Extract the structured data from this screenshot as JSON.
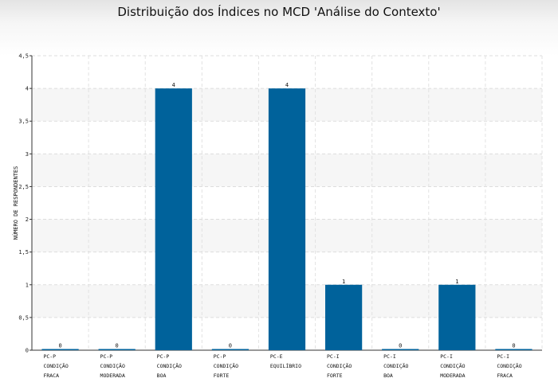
{
  "chart_data": {
    "type": "bar",
    "title": "Distribuição dos Índices no MCD 'Análise do Contexto'",
    "xlabel": "",
    "ylabel": "NÚMERO DE RESPONDENTES",
    "ylim": [
      0,
      4.5
    ],
    "yticks": [
      "0",
      "0,5",
      "1",
      "1,5",
      "2",
      "2,5",
      "3",
      "3,5",
      "4",
      "4,5"
    ],
    "ytick_values": [
      0,
      0.5,
      1,
      1.5,
      2,
      2.5,
      3,
      3.5,
      4,
      4.5
    ],
    "grid": true,
    "legend": "none",
    "bar_color": "#00629b",
    "categories": [
      [
        "PC-P",
        "CONDIÇÃO",
        "FRACA"
      ],
      [
        "PC-P",
        "CONDIÇÃO",
        "MODERADA"
      ],
      [
        "PC-P",
        "CONDIÇÃO",
        "BOA"
      ],
      [
        "PC-P",
        "CONDIÇÃO",
        "FORTE"
      ],
      [
        "PC-E",
        "EQUILÍBRIO"
      ],
      [
        "PC-I",
        "CONDIÇÃO",
        "FORTE"
      ],
      [
        "PC-I",
        "CONDIÇÃO",
        "BOA"
      ],
      [
        "PC-I",
        "CONDIÇÃO",
        "MODERADA"
      ],
      [
        "PC-I",
        "CONDIÇÃO",
        "FRACA"
      ]
    ],
    "values": [
      0,
      0,
      4,
      0,
      4,
      1,
      0,
      1,
      0
    ],
    "data_labels": [
      "0",
      "0",
      "4",
      "0",
      "4",
      "1",
      "0",
      "1",
      "0"
    ]
  }
}
